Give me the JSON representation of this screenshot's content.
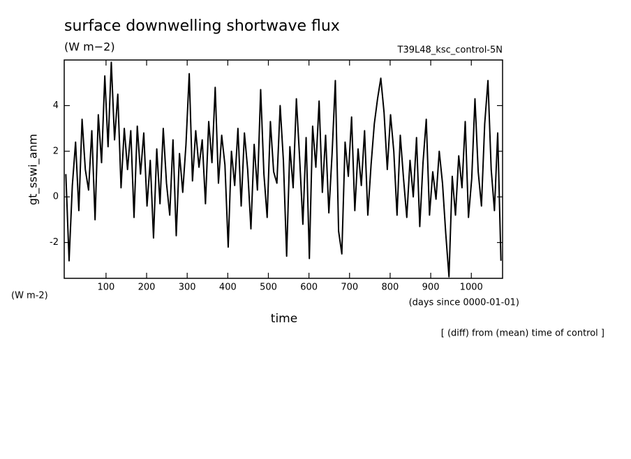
{
  "chart_data": {
    "type": "line",
    "title": "surface downwelling shortwave flux",
    "subtitle": "(W m−2)",
    "annotation": "T39L48_ksc_control-5N",
    "y_label": "gt_sswi_anm",
    "y_units": "(W m-2)",
    "x_label": "time",
    "x_units": "(days since 0000-01-01)",
    "note": "[ (diff) from (mean) time of control ]",
    "xlim": [
      -3,
      1077
    ],
    "ylim": [
      -3.57,
      6.0
    ],
    "xticks": [
      100,
      200,
      300,
      400,
      500,
      600,
      700,
      800,
      900,
      1000
    ],
    "yticks": [
      -2,
      0,
      2,
      4
    ],
    "series": [
      {
        "name": "gt_sswi_anm",
        "color": "#000000",
        "x": [
          1,
          9,
          17,
          25,
          33,
          41,
          49,
          57,
          65,
          73,
          81,
          89,
          97,
          105,
          113,
          121,
          129,
          137,
          145,
          153,
          161,
          169,
          177,
          185,
          193,
          201,
          209,
          217,
          225,
          233,
          241,
          249,
          257,
          265,
          273,
          281,
          289,
          297,
          305,
          313,
          321,
          329,
          337,
          345,
          353,
          361,
          369,
          377,
          385,
          393,
          401,
          409,
          417,
          425,
          433,
          441,
          449,
          457,
          465,
          473,
          481,
          489,
          497,
          505,
          513,
          521,
          529,
          537,
          545,
          553,
          561,
          569,
          577,
          585,
          593,
          601,
          609,
          617,
          625,
          633,
          641,
          649,
          657,
          665,
          673,
          681,
          689,
          697,
          705,
          713,
          721,
          729,
          737,
          745,
          753,
          761,
          769,
          777,
          785,
          793,
          801,
          809,
          817,
          825,
          833,
          841,
          849,
          857,
          865,
          873,
          881,
          889,
          897,
          905,
          913,
          921,
          929,
          937,
          945,
          953,
          961,
          969,
          977,
          985,
          993,
          1001,
          1009,
          1017,
          1025,
          1033,
          1041,
          1049,
          1057,
          1065,
          1073
        ],
        "values": [
          1.0,
          -2.8,
          0.5,
          2.4,
          -0.6,
          3.4,
          1.2,
          0.3,
          2.9,
          -1.0,
          3.6,
          1.5,
          5.3,
          2.2,
          5.9,
          2.5,
          4.5,
          0.4,
          3.0,
          1.2,
          2.9,
          -0.9,
          3.1,
          1.0,
          2.8,
          -0.4,
          1.6,
          -1.8,
          2.1,
          -0.3,
          3.0,
          0.6,
          -0.8,
          2.5,
          -1.7,
          1.9,
          0.2,
          2.3,
          5.4,
          0.7,
          2.9,
          1.3,
          2.5,
          -0.3,
          3.3,
          1.5,
          4.8,
          0.6,
          2.7,
          1.4,
          -2.2,
          2.0,
          0.5,
          3.0,
          -0.4,
          2.8,
          1.2,
          -1.4,
          2.3,
          0.3,
          4.7,
          1.0,
          -0.9,
          3.3,
          1.1,
          0.6,
          4.0,
          1.6,
          -2.6,
          2.2,
          0.4,
          4.3,
          1.7,
          -1.2,
          2.6,
          -2.7,
          3.1,
          1.3,
          4.2,
          0.2,
          2.7,
          -0.7,
          1.9,
          5.1,
          -1.5,
          -2.5,
          2.4,
          0.9,
          3.5,
          -0.6,
          2.1,
          0.5,
          2.9,
          -0.8,
          1.4,
          3.2,
          4.3,
          5.2,
          3.7,
          1.2,
          3.6,
          2.0,
          -0.8,
          2.7,
          0.8,
          -0.9,
          1.6,
          0.0,
          2.6,
          -1.3,
          1.5,
          3.4,
          -0.8,
          1.1,
          -0.1,
          2.0,
          0.6,
          -1.6,
          -3.5,
          0.9,
          -0.8,
          1.8,
          0.4,
          3.3,
          -0.9,
          0.8,
          4.3,
          1.1,
          -0.4,
          3.2,
          5.1,
          1.2,
          -0.6,
          2.8,
          -2.8
        ]
      }
    ]
  }
}
